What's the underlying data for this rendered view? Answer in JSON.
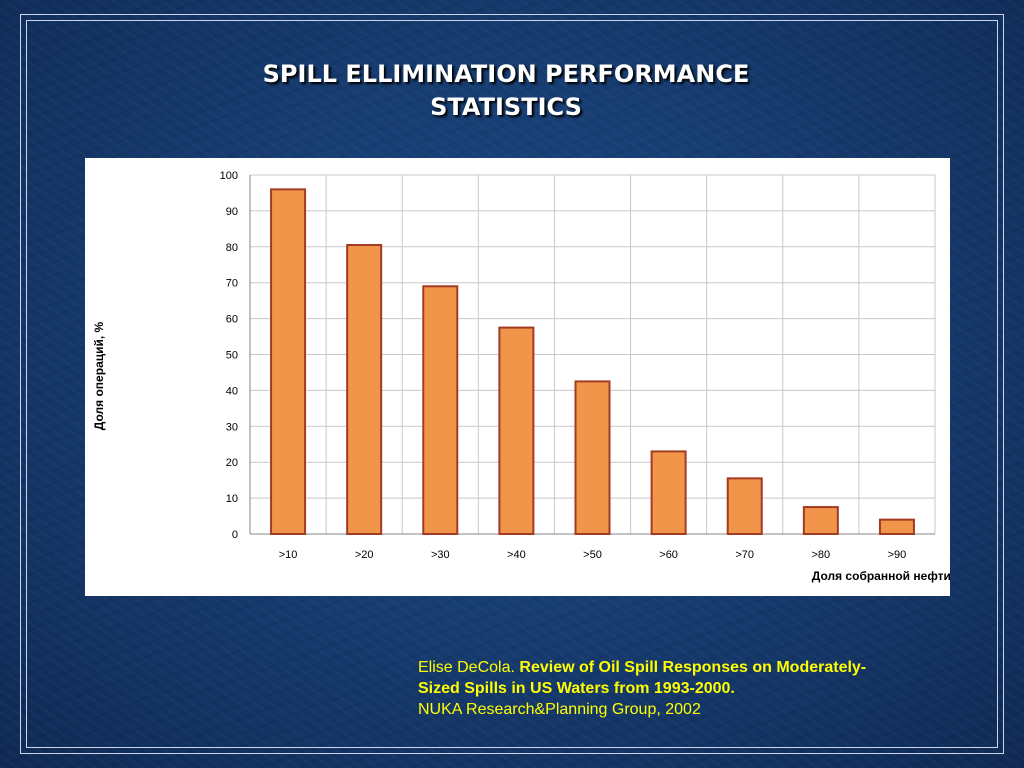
{
  "slide": {
    "title_line1": "SPILL ELLIMINATION PERFORMANCE",
    "title_line2": "STATISTICS"
  },
  "citation": {
    "author": "Elise DeCola.",
    "work_line1": "Review of Oil Spill Responses on Moderately-",
    "work_line2": "Sized Spills in US Waters from 1993-2000.",
    "publisher": "NUKA Research&Planning Group, 2002"
  },
  "colors": {
    "bar_fill": "#f0954a",
    "bar_stroke": "#a33a22",
    "grid": "#c8c8c8",
    "citation_text": "#ffff00"
  },
  "chart_data": {
    "type": "bar",
    "categories": [
      ">10",
      ">20",
      ">30",
      ">40",
      ">50",
      ">60",
      ">70",
      ">80",
      ">90"
    ],
    "values": [
      96,
      80.5,
      69,
      57.5,
      42.5,
      23,
      15.5,
      7.5,
      4
    ],
    "xlabel": "Доля собранной нефти, %",
    "ylabel": "Доля  операций, %",
    "ylim": [
      0,
      100
    ],
    "yticks": [
      0,
      10,
      20,
      30,
      40,
      50,
      60,
      70,
      80,
      90,
      100
    ],
    "grid": true,
    "legend": "none"
  }
}
